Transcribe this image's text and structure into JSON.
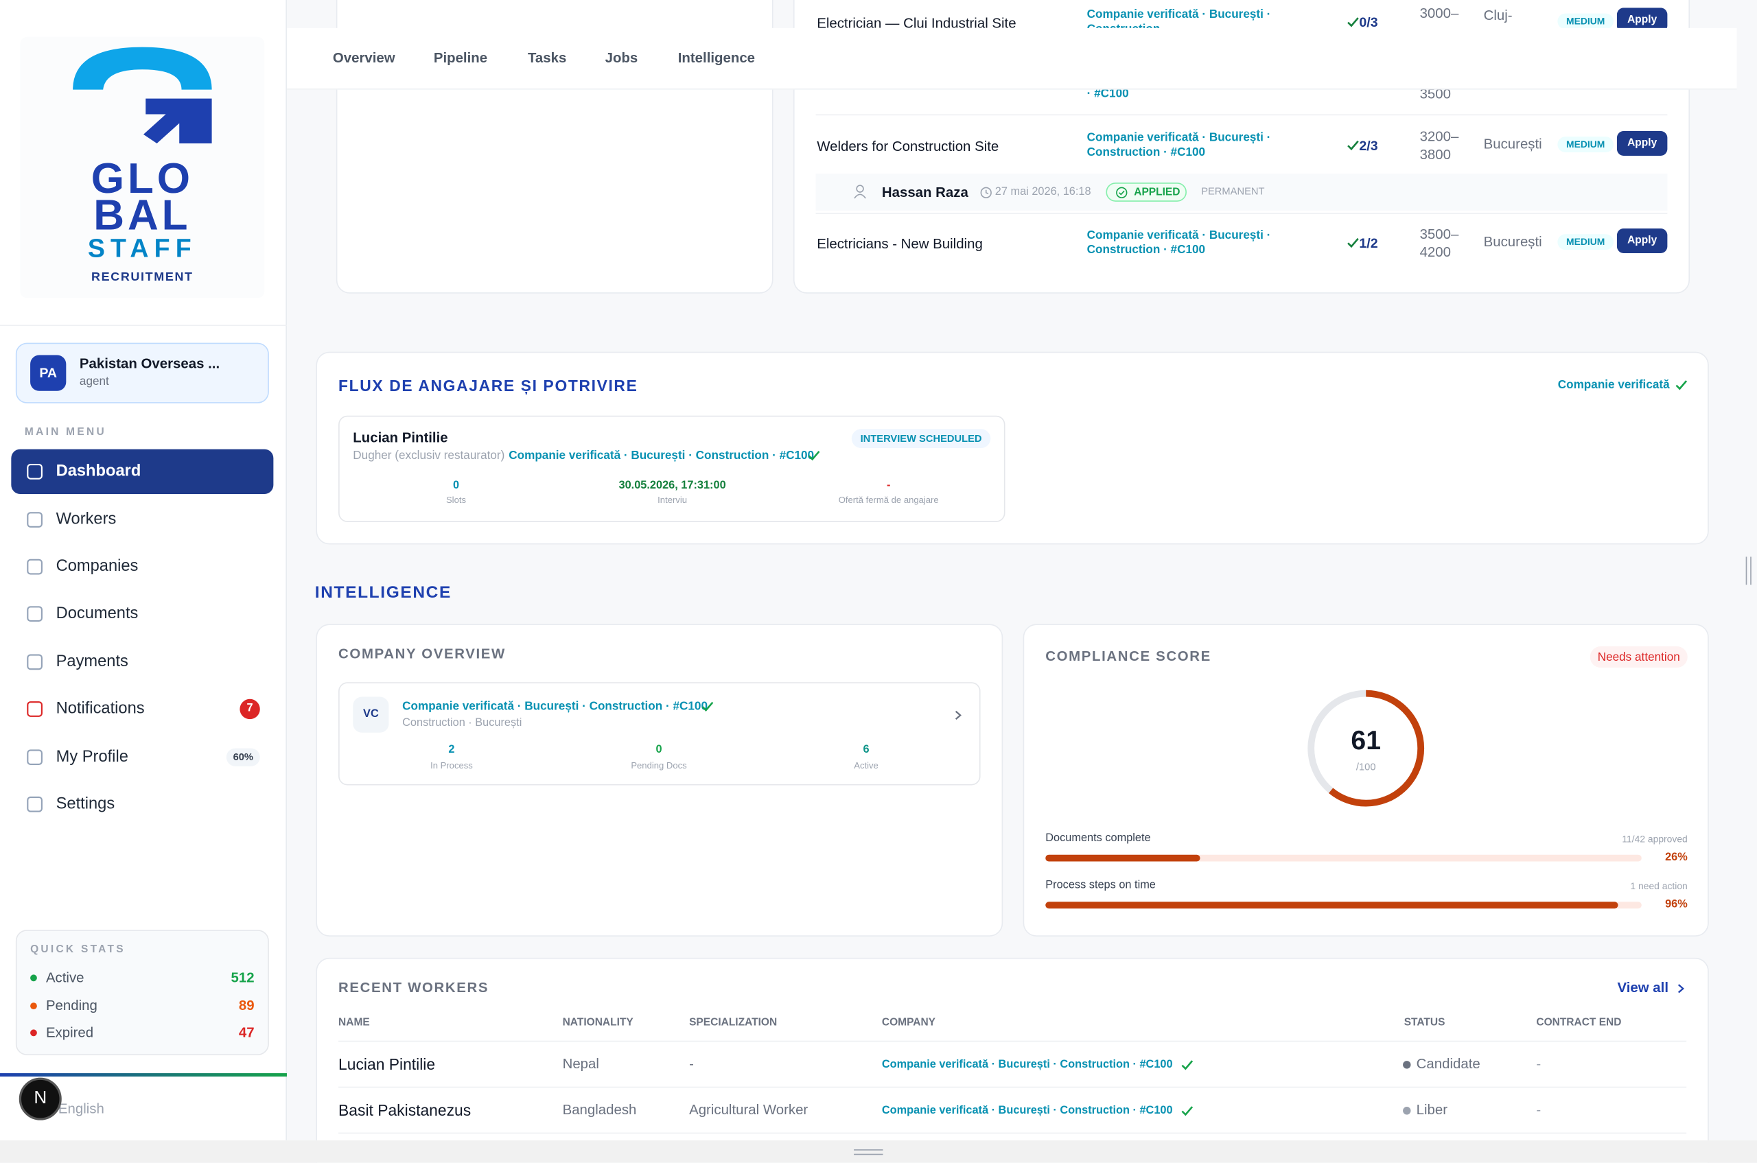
{
  "sidebar": {
    "logo": {
      "line1": "GLO",
      "line2": "BAL",
      "line3": "STAFF",
      "line4": "RECRUITMENT"
    },
    "account": {
      "initials": "PA",
      "name": "Pakistan Overseas ...",
      "role": "agent"
    },
    "menu_label": "MAIN MENU",
    "menu": [
      {
        "label": "Dashboard"
      },
      {
        "label": "Workers"
      },
      {
        "label": "Companies"
      },
      {
        "label": "Documents"
      },
      {
        "label": "Payments"
      },
      {
        "label": "Notifications",
        "badge": 7
      },
      {
        "label": "My Profile",
        "badge": "60%"
      },
      {
        "label": "Settings"
      }
    ],
    "quick_stats": {
      "title": "QUICK STATS",
      "items": [
        {
          "label": "Active",
          "value": 512
        },
        {
          "label": "Pending",
          "value": 89
        },
        {
          "label": "Expired",
          "value": 47
        }
      ]
    },
    "language": "English",
    "avatar": "N"
  },
  "tabs": [
    "Overview",
    "Pipeline",
    "Tasks",
    "Jobs",
    "Intelligence"
  ],
  "jobs": {
    "rows": [
      {
        "title": "Electrician — Cluj Industrial Site",
        "company": "Companie verificată · București · Construction",
        "ratio": "0/3",
        "salary": "3000–",
        "city": "Cluj-",
        "priority": "MEDIUM",
        "action": "Apply"
      },
      {
        "title": "Welders for Construction Site",
        "company": "Companie verificată · București · Construction · #C100",
        "ratio": "2/3",
        "salary": "3200–3800",
        "city": "București",
        "priority": "MEDIUM",
        "action": "Apply"
      },
      {
        "title": "Electricians - New Building",
        "company": "Companie verificată · București · Construction · #C100",
        "ratio": "1/2",
        "salary": "3500–4200",
        "city": "București",
        "priority": "MEDIUM",
        "action": "Apply"
      }
    ],
    "fragments": [
      "· #C100",
      "3500"
    ],
    "applicant": {
      "name": "Hassan Raza",
      "time": "27 mai 2026, 16:18",
      "status": "APPLIED",
      "type": "PERMANENT"
    }
  },
  "flux": {
    "title": "FLUX DE ANGAJARE ȘI POTRIVIRE",
    "company_badge": "Companie verificată",
    "match": {
      "name": "Lucian Pintilie",
      "role": "Dugher (exclusiv restaurator) ·",
      "company": "Companie verificată · București · Construction · #C100",
      "status": "INTERVIEW SCHEDULED",
      "stats": [
        {
          "value": "0",
          "label": "Slots"
        },
        {
          "value": "30.05.2026, 17:31:00",
          "label": "Interviu"
        },
        {
          "value": "-",
          "label": "Ofertă fermă de angajare"
        }
      ]
    }
  },
  "intelligence": {
    "title": "INTELLIGENCE",
    "company_overview": {
      "title": "COMPANY OVERVIEW",
      "initials": "VC",
      "company": "Companie verificată · București · Construction · #C100",
      "subtitle": "Construction · București",
      "stats": [
        {
          "value": 2,
          "label": "In Process"
        },
        {
          "value": 0,
          "label": "Pending Docs"
        },
        {
          "value": 6,
          "label": "Active"
        }
      ]
    },
    "compliance": {
      "title": "COMPLIANCE SCORE",
      "badge": "Needs attention",
      "score": 61,
      "max": 100,
      "max_label": "/100",
      "bars": [
        {
          "label": "Documents complete",
          "note": "11/42 approved",
          "value": 26,
          "value_label": "26%"
        },
        {
          "label": "Process steps on time",
          "note": "1 need action",
          "value": 96,
          "value_label": "96%"
        }
      ]
    }
  },
  "recent_workers": {
    "title": "RECENT WORKERS",
    "view_all": "View all",
    "columns": [
      "NAME",
      "NATIONALITY",
      "SPECIALIZATION",
      "COMPANY",
      "STATUS",
      "CONTRACT END"
    ],
    "rows": [
      [
        "Lucian Pintilie",
        "Nepal",
        "-",
        "Companie verificată · București · Construction · #C100",
        "Candidate",
        "-"
      ],
      [
        "Basit Pakistanezus",
        "Bangladesh",
        "Agricultural Worker",
        "Companie verificată · București · Construction · #C100",
        "Liber",
        "-"
      ]
    ]
  }
}
